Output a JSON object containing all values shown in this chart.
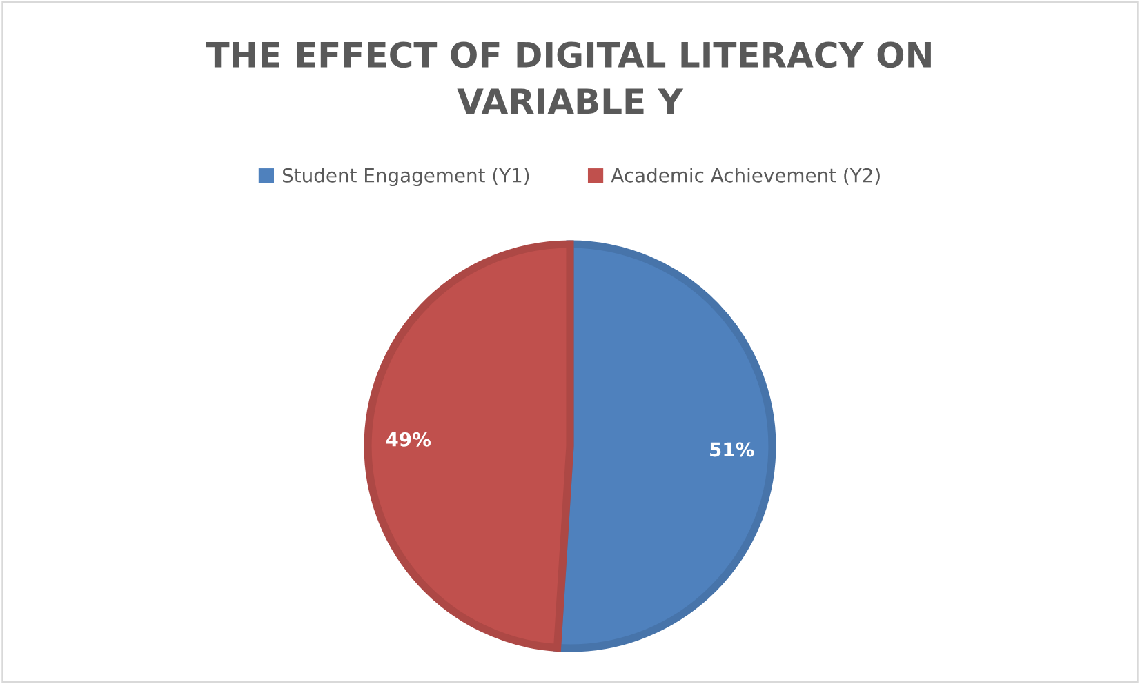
{
  "chart_data": {
    "type": "pie",
    "title": "THE EFFECT OF DIGITAL LITERACY ON VARIABLE Y",
    "categories": [
      "Student Engagement (Y1)",
      "Academic Achievement (Y2)"
    ],
    "values": [
      51,
      49
    ],
    "colors": [
      "#4f81bd",
      "#c0504d"
    ],
    "value_labels": [
      "51%",
      "49%"
    ],
    "legend": "top"
  }
}
